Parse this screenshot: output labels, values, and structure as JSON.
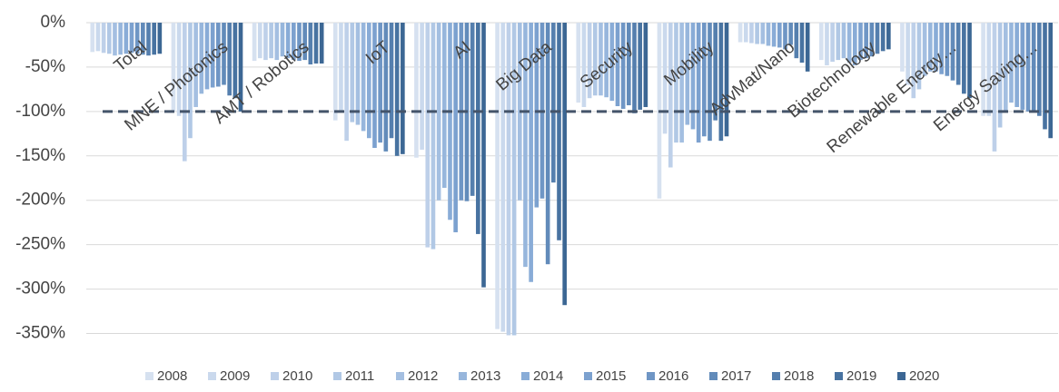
{
  "chart_data": {
    "type": "bar",
    "categories": [
      "Total",
      "MNE / Photonics",
      "AMT / Robotics",
      "IoT",
      "AI",
      "Big Data",
      "Security",
      "Mobility",
      "AdvMat/Nano",
      "Biotechnology",
      "Renewable Energy…",
      "Energy Saving…"
    ],
    "series": [
      {
        "name": "2008",
        "color": "#d6e1f0",
        "values": [
          -33,
          -100,
          -43,
          -110,
          -152,
          -345,
          -90,
          -198,
          -22,
          -42,
          -55,
          -105
        ]
      },
      {
        "name": "2009",
        "color": "#cad9ed",
        "values": [
          -32,
          -105,
          -40,
          -100,
          -143,
          -348,
          -95,
          -125,
          -22,
          -48,
          -70,
          -105
        ]
      },
      {
        "name": "2010",
        "color": "#bed0e9",
        "values": [
          -34,
          -156,
          -42,
          -133,
          -253,
          -352,
          -85,
          -163,
          -23,
          -44,
          -85,
          -145
        ]
      },
      {
        "name": "2011",
        "color": "#b1c8e5",
        "values": [
          -35,
          -130,
          -40,
          -112,
          -255,
          -352,
          -82,
          -135,
          -24,
          -42,
          -75,
          -118
        ]
      },
      {
        "name": "2012",
        "color": "#a4bfe1",
        "values": [
          -37,
          -95,
          -42,
          -115,
          -200,
          -200,
          -82,
          -135,
          -24,
          -40,
          -60,
          -100
        ]
      },
      {
        "name": "2013",
        "color": "#97b6dc",
        "values": [
          -36,
          -80,
          -38,
          -122,
          -186,
          -275,
          -84,
          -115,
          -26,
          -45,
          -55,
          -90
        ]
      },
      {
        "name": "2014",
        "color": "#89acd7",
        "values": [
          -35,
          -75,
          -40,
          -130,
          -222,
          -292,
          -88,
          -120,
          -27,
          -48,
          -55,
          -95
        ]
      },
      {
        "name": "2015",
        "color": "#7ca1cf",
        "values": [
          -34,
          -73,
          -42,
          -141,
          -236,
          -208,
          -94,
          -135,
          -28,
          -42,
          -58,
          -98
        ]
      },
      {
        "name": "2016",
        "color": "#6f96c5",
        "values": [
          -35,
          -72,
          -43,
          -135,
          -200,
          -198,
          -97,
          -128,
          -30,
          -40,
          -60,
          -100
        ]
      },
      {
        "name": "2017",
        "color": "#628bba",
        "values": [
          -36,
          -70,
          -42,
          -145,
          -201,
          -272,
          -93,
          -133,
          -25,
          -38,
          -65,
          -100
        ]
      },
      {
        "name": "2018",
        "color": "#557fae",
        "values": [
          -37,
          -82,
          -47,
          -130,
          -195,
          -180,
          -102,
          -110,
          -40,
          -35,
          -70,
          -105
        ]
      },
      {
        "name": "2019",
        "color": "#4873a1",
        "values": [
          -36,
          -85,
          -46,
          -150,
          -238,
          -245,
          -98,
          -133,
          -45,
          -32,
          -80,
          -120
        ]
      },
      {
        "name": "2020",
        "color": "#3c6794",
        "values": [
          -35,
          -100,
          -46,
          -148,
          -298,
          -318,
          -95,
          -128,
          -55,
          -30,
          -85,
          -130
        ]
      }
    ],
    "ylim": [
      -375,
      0
    ],
    "yticks": [
      {
        "value": 0,
        "label": "0%"
      },
      {
        "value": -50,
        "label": "-50%"
      },
      {
        "value": -100,
        "label": "-100%"
      },
      {
        "value": -150,
        "label": "-150%"
      },
      {
        "value": -200,
        "label": "-200%"
      },
      {
        "value": -250,
        "label": "-250%"
      },
      {
        "value": -300,
        "label": "-300%"
      },
      {
        "value": -350,
        "label": "-350%"
      }
    ],
    "grid": true,
    "reference_line": -100,
    "legend": "bottom"
  }
}
